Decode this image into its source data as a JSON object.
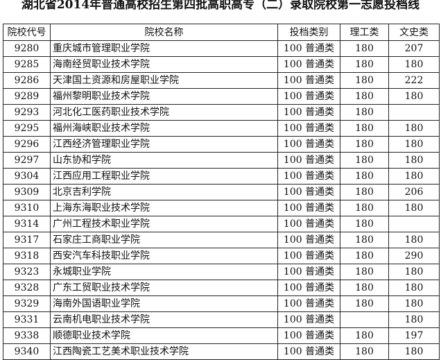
{
  "title": "湖北省2014年普通高校招生第四批高职高专（二）录取院校第一志愿投档线",
  "columns": [
    "院校代号",
    "院校名称",
    "投档类别",
    "理工类",
    "文史类"
  ],
  "rows": [
    [
      "9280",
      "重庆城市管理职业学院",
      "100 普通类",
      "180",
      "207"
    ],
    [
      "9285",
      "海南经贸职业技术学院",
      "100 普通类",
      "180",
      "180"
    ],
    [
      "9286",
      "天津国土资源和房屋职业学院",
      "100 普通类",
      "180",
      "222"
    ],
    [
      "9289",
      "福州黎明职业技术学院",
      "100 普通类",
      "180",
      "180"
    ],
    [
      "9293",
      "河北化工医药职业技术学院",
      "100 普通类",
      "180",
      ""
    ],
    [
      "9295",
      "福州海峡职业技术学院",
      "100 普通类",
      "180",
      "180"
    ],
    [
      "9296",
      "江西经济管理职业学院",
      "100 普通类",
      "180",
      "180"
    ],
    [
      "9297",
      "山东协和学院",
      "100 普通类",
      "180",
      "180"
    ],
    [
      "9304",
      "江西应用工程职业学院",
      "100 普通类",
      "180",
      "180"
    ],
    [
      "9309",
      "北京吉利学院",
      "100 普通类",
      "180",
      "206"
    ],
    [
      "9310",
      "上海东海职业技术学院",
      "100 普通类",
      "180",
      "180"
    ],
    [
      "9314",
      "广州工程技术职业学院",
      "100 普通类",
      "180",
      ""
    ],
    [
      "9317",
      "石家庄工商职业学院",
      "100 普通类",
      "180",
      "180"
    ],
    [
      "9318",
      "西安汽车科技职业学院",
      "100 普通类",
      "180",
      "290"
    ],
    [
      "9323",
      "永城职业学院",
      "100 普通类",
      "180",
      "180"
    ],
    [
      "9328",
      "广东工贸职业技术学院",
      "100 普通类",
      "180",
      "180"
    ],
    [
      "9329",
      "海南外国语职业学院",
      "100 普通类",
      "180",
      "180"
    ],
    [
      "9331",
      "云南机电职业技术学院",
      "100 普通类",
      "",
      "180"
    ],
    [
      "9338",
      "顺德职业技术学院",
      "100 普通类",
      "180",
      "197"
    ],
    [
      "9340",
      "江西陶瓷工艺美术职业技术学院",
      "100 普通类",
      "180",
      "180"
    ]
  ]
}
